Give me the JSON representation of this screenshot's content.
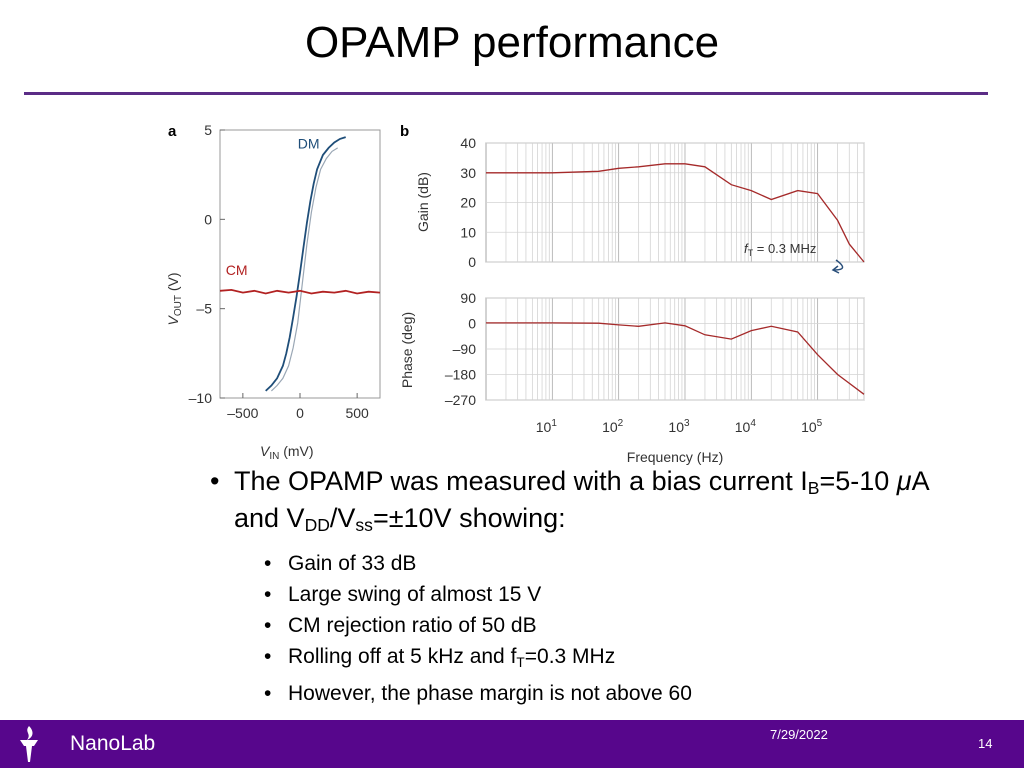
{
  "slide": {
    "title": "OPAMP performance",
    "footer_brand": "NanoLab",
    "footer_date": "7/29/2022",
    "page_number": "14"
  },
  "bullets": {
    "main": {
      "pre": "The OPAMP was measured with a bias current I",
      "sub_b": "B",
      "mid1": "=5-10 ",
      "mu": "μ",
      "mid2": "A and V",
      "sub_dd": "DD",
      "mid3": "/V",
      "sub_ss": "ss",
      "post": "=±10V showing:"
    },
    "items": [
      {
        "text": "Gain of 33 dB"
      },
      {
        "text": "Large swing of almost 15 V"
      },
      {
        "text": "CM rejection ratio of 50 dB"
      },
      {
        "pre": "Rolling off at 5 kHz and f",
        "sub": "T",
        "post": "=0.3 MHz"
      },
      {
        "text": "However, the phase margin is not above 60"
      }
    ]
  },
  "colors": {
    "accent": "#5b2c86",
    "footer": "#57068c",
    "dm_line": "#1f4e79",
    "cm_line": "#b22222",
    "bode_line": "#a52a2a"
  },
  "chart_data": [
    {
      "type": "line",
      "panel_label": "a",
      "xlabel": "V",
      "xlabel_sub": "IN",
      "xlabel_unit": " (mV)",
      "ylabel": "V",
      "ylabel_sub": "OUT",
      "ylabel_unit": " (V)",
      "xlim": [
        -700,
        700
      ],
      "ylim": [
        -10,
        5
      ],
      "xticks": [
        -500,
        0,
        500
      ],
      "xtick_labels": [
        "–500",
        "0",
        "500"
      ],
      "yticks": [
        5,
        0,
        -5,
        -10
      ],
      "ytick_labels": [
        "5",
        "0",
        "–5",
        "–10"
      ],
      "grid": false,
      "series": [
        {
          "name": "DM",
          "color": "#1f4e79",
          "x": [
            -300,
            -250,
            -200,
            -150,
            -120,
            -90,
            -60,
            -30,
            0,
            30,
            60,
            90,
            120,
            150,
            200,
            250,
            300,
            350,
            400
          ],
          "y": [
            -9.6,
            -9.3,
            -8.9,
            -8.2,
            -7.5,
            -6.6,
            -5.5,
            -4.3,
            -3.0,
            -1.6,
            -0.2,
            1.0,
            2.0,
            2.8,
            3.6,
            4.0,
            4.3,
            4.5,
            4.6
          ]
        },
        {
          "name": "",
          "color": "#9aa7b5",
          "x": [
            -250,
            -200,
            -150,
            -100,
            -60,
            -20,
            20,
            60,
            100,
            140,
            180,
            230,
            280,
            330
          ],
          "y": [
            -9.6,
            -9.3,
            -8.9,
            -8.2,
            -7.2,
            -5.8,
            -3.6,
            -1.4,
            0.4,
            1.8,
            2.8,
            3.4,
            3.8,
            4.0
          ]
        },
        {
          "name": "CM",
          "color": "#b22222",
          "x": [
            -700,
            -600,
            -500,
            -400,
            -300,
            -200,
            -100,
            0,
            100,
            200,
            300,
            400,
            500,
            600,
            700
          ],
          "y": [
            -4.0,
            -3.95,
            -4.1,
            -4.0,
            -4.15,
            -4.0,
            -4.1,
            -4.0,
            -4.15,
            -4.05,
            -4.1,
            -4.0,
            -4.15,
            -4.05,
            -4.1
          ]
        }
      ]
    },
    {
      "type": "line",
      "panel_label": "b",
      "xscale": "log",
      "xlim": [
        1,
        500000
      ],
      "ylim": [
        0,
        40
      ],
      "yticks": [
        0,
        10,
        20,
        30,
        40
      ],
      "ylabel": "Gain (dB)",
      "grid": true,
      "annotation": {
        "text_pre": "f",
        "text_sub": "T",
        "text_post": " = 0.3 MHz"
      },
      "series": [
        {
          "name": "",
          "color": "#a52a2a",
          "x": [
            1,
            10,
            50,
            100,
            200,
            500,
            1000,
            2000,
            5000,
            10000,
            20000,
            50000,
            100000,
            200000,
            300000,
            500000
          ],
          "y": [
            30,
            30,
            30.5,
            31.5,
            32,
            33,
            33,
            32,
            26,
            24,
            21,
            24,
            23,
            14,
            6,
            0
          ]
        }
      ]
    },
    {
      "type": "line",
      "panel_label": "",
      "xscale": "log",
      "xlim": [
        1,
        500000
      ],
      "ylim": [
        -270,
        90
      ],
      "yticks": [
        90,
        0,
        -90,
        -180,
        -270
      ],
      "ytick_labels": [
        "90",
        "0",
        "–90",
        "–180",
        "–270"
      ],
      "xlabel": "Frequency (Hz)",
      "xtick_exponents": [
        "1",
        "2",
        "3",
        "4",
        "5"
      ],
      "ylabel": "Phase (deg)",
      "grid": true,
      "series": [
        {
          "name": "",
          "color": "#a52a2a",
          "x": [
            1,
            10,
            50,
            100,
            200,
            500,
            1000,
            2000,
            5000,
            10000,
            20000,
            50000,
            100000,
            200000,
            500000
          ],
          "y": [
            2,
            2,
            1,
            -5,
            -10,
            2,
            -8,
            -40,
            -55,
            -25,
            -10,
            -30,
            -110,
            -180,
            -250
          ]
        }
      ]
    }
  ]
}
